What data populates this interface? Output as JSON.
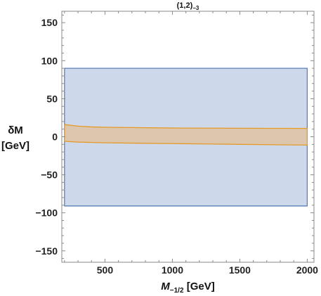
{
  "chart_data": {
    "type": "area",
    "title": "(1,2)",
    "title_subscript": "−3",
    "xlabel": "M",
    "xlabel_subscript": "−1/2",
    "xlabel_unit": " [GeV]",
    "ylabel_line1": "δM",
    "ylabel_line2": "[GeV]",
    "xlim": [
      180,
      2050
    ],
    "ylim": [
      -165,
      165
    ],
    "xticks": [
      500,
      1000,
      1500,
      2000
    ],
    "yticks": [
      -150,
      -100,
      -50,
      0,
      50,
      100,
      150
    ],
    "grid": false,
    "series": [
      {
        "kind": "rectangle-region",
        "color_fill": "#cdd9ea",
        "color_edge": "#5b7fb8",
        "x": [
          200,
          2000
        ],
        "y_lower": [
          -91,
          -91
        ],
        "y_upper": [
          90,
          90
        ]
      },
      {
        "kind": "band-region",
        "color_fill": "#dcc6ad",
        "color_edge": "#e59a2a",
        "x": [
          200,
          300,
          400,
          500,
          750,
          1000,
          1250,
          1500,
          1750,
          2000
        ],
        "y_upper": [
          16,
          14,
          13,
          12.5,
          12,
          11.5,
          11.3,
          11.2,
          11.1,
          11
        ],
        "y_lower": [
          -6,
          -7,
          -7.5,
          -8,
          -8.5,
          -9,
          -9.5,
          -10,
          -10.5,
          -11
        ]
      }
    ]
  }
}
